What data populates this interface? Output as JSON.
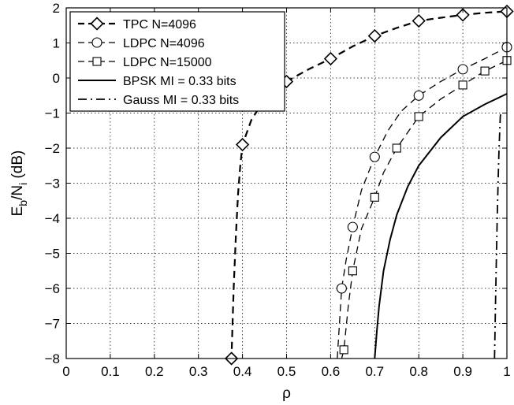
{
  "chart_data": {
    "type": "line",
    "xlabel": "ρ",
    "ylabel": "E_b/N_i (dB)",
    "ylabel_parts": {
      "main1": "E",
      "sub1": "b",
      "main2": "/N",
      "sub2": "i",
      "unit": " (dB)"
    },
    "xlim": [
      0,
      1
    ],
    "ylim": [
      -8,
      2
    ],
    "xticks": [
      0,
      0.1,
      0.2,
      0.3,
      0.4,
      0.5,
      0.6,
      0.7,
      0.8,
      0.9,
      1
    ],
    "xtick_labels": [
      "0",
      "0.1",
      "0.2",
      "0.3",
      "0.4",
      "0.5",
      "0.6",
      "0.7",
      "0.8",
      "0.9",
      "1"
    ],
    "yticks": [
      -8,
      -7,
      -6,
      -5,
      -4,
      -3,
      -2,
      -1,
      0,
      1,
      2
    ],
    "ytick_labels": [
      "−8",
      "−7",
      "−6",
      "−5",
      "−4",
      "−3",
      "−2",
      "−1",
      "0",
      "1",
      "2"
    ],
    "grid": true,
    "legend_position": "top-left",
    "series": [
      {
        "name": "TPC N=4096",
        "line": "dashed",
        "marker": "diamond",
        "x": [
          0.375,
          0.4,
          0.5,
          0.6,
          0.7,
          0.8,
          0.9,
          1.0
        ],
        "y": [
          -8.0,
          -1.9,
          -0.1,
          0.55,
          1.2,
          1.63,
          1.8,
          1.9
        ],
        "curve_x": [
          0.37,
          0.372,
          0.375,
          0.38,
          0.385,
          0.39,
          0.395,
          0.4,
          0.42,
          0.45,
          0.48,
          0.5,
          0.55,
          0.6,
          0.65,
          0.7,
          0.75,
          0.8,
          0.85,
          0.9,
          0.95,
          1.0
        ],
        "curve_y": [
          -8.0,
          -8.0,
          -8.0,
          -6.0,
          -4.5,
          -3.3,
          -2.5,
          -1.9,
          -1.2,
          -0.6,
          -0.25,
          -0.1,
          0.25,
          0.55,
          0.9,
          1.2,
          1.43,
          1.63,
          1.72,
          1.8,
          1.86,
          1.9
        ]
      },
      {
        "name": "LDPC N=4096",
        "line": "dashed",
        "marker": "circle",
        "x": [
          0.625,
          0.65,
          0.7,
          0.8,
          0.9,
          1.0
        ],
        "y": [
          -6.0,
          -4.25,
          -2.25,
          -0.5,
          0.25,
          0.88
        ],
        "curve_x": [
          0.615,
          0.62,
          0.625,
          0.635,
          0.65,
          0.67,
          0.7,
          0.73,
          0.76,
          0.8,
          0.85,
          0.9,
          0.95,
          1.0
        ],
        "curve_y": [
          -8.0,
          -7.0,
          -6.0,
          -5.2,
          -4.25,
          -3.2,
          -2.25,
          -1.5,
          -0.95,
          -0.5,
          -0.1,
          0.25,
          0.55,
          0.88
        ]
      },
      {
        "name": "LDPC N=15000",
        "line": "dashed",
        "marker": "square",
        "x": [
          0.63,
          0.65,
          0.7,
          0.75,
          0.8,
          0.9,
          0.95,
          1.0
        ],
        "y": [
          -7.75,
          -5.5,
          -3.4,
          -2.0,
          -1.1,
          -0.2,
          0.2,
          0.5
        ],
        "curve_x": [
          0.625,
          0.63,
          0.64,
          0.65,
          0.67,
          0.7,
          0.72,
          0.75,
          0.8,
          0.85,
          0.9,
          0.95,
          1.0
        ],
        "curve_y": [
          -8.0,
          -7.75,
          -6.5,
          -5.5,
          -4.3,
          -3.4,
          -2.7,
          -2.0,
          -1.1,
          -0.6,
          -0.2,
          0.2,
          0.5
        ]
      },
      {
        "name": "BPSK MI = 0.33 bits",
        "line": "solid",
        "marker": "none",
        "curve_x": [
          0.7,
          0.705,
          0.71,
          0.72,
          0.735,
          0.75,
          0.775,
          0.8,
          0.85,
          0.9,
          0.95,
          1.0
        ],
        "curve_y": [
          -8.0,
          -7.2,
          -6.5,
          -5.5,
          -4.6,
          -3.9,
          -3.1,
          -2.5,
          -1.7,
          -1.1,
          -0.75,
          -0.45
        ]
      },
      {
        "name": "Gauss MI = 0.33 bits",
        "line": "dashdot",
        "marker": "none",
        "curve_x": [
          0.972,
          0.974,
          0.976,
          0.978,
          0.98,
          0.982,
          0.984,
          0.985,
          0.986
        ],
        "curve_y": [
          -8.0,
          -6.5,
          -5.2,
          -4.0,
          -3.0,
          -2.1,
          -1.4,
          -1.1,
          -1.0
        ]
      }
    ]
  }
}
